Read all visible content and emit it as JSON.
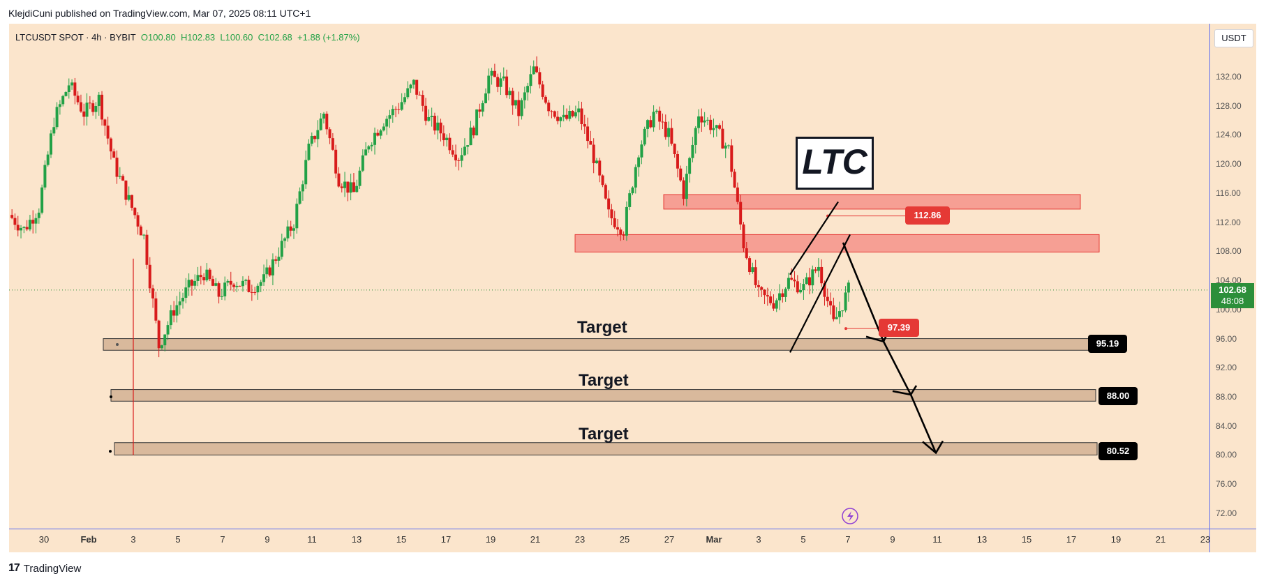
{
  "header": {
    "publisher": "KlejdiCuni published on TradingView.com, Mar 07, 2025 08:11 UTC+1"
  },
  "legend": {
    "symbol": "LTCUSDT SPOT · 4h · BYBIT",
    "open": "O100.80",
    "high": "H102.83",
    "low": "L100.60",
    "close": "C102.68",
    "change": "+1.88 (+1.87%)"
  },
  "currency_button": "USDT",
  "current_price": {
    "value": "102.68",
    "countdown": "48:08"
  },
  "annotations": {
    "title_box": "LTC",
    "targets": [
      "Target",
      "Target",
      "Target"
    ],
    "price_tags": {
      "upper": "112.86",
      "lower": "97.39",
      "target1": "95.19",
      "target2": "88.00",
      "target3": "80.52"
    }
  },
  "footer": {
    "brand": "TradingView"
  },
  "colors": {
    "up": "#22a146",
    "down": "#d81b1b",
    "zone_red": "#f5938a",
    "zone_tan": "#d2b293",
    "tag_red": "#e53935",
    "tag_black": "#000000",
    "bg": "#fbe5cc"
  },
  "chart_data": {
    "type": "candlestick",
    "title": "LTCUSDT SPOT · 4h · BYBIT",
    "ylim": [
      70,
      136
    ],
    "y_ticks": [
      "132.00",
      "128.00",
      "124.00",
      "120.00",
      "116.00",
      "112.00",
      "108.00",
      "104.00",
      "100.00",
      "96.00",
      "92.00",
      "88.00",
      "84.00",
      "80.00",
      "76.00",
      "72.00"
    ],
    "x_ticks": [
      "30",
      "Feb",
      "3",
      "5",
      "7",
      "9",
      "11",
      "13",
      "15",
      "17",
      "19",
      "21",
      "23",
      "25",
      "27",
      "Mar",
      "3",
      "5",
      "7",
      "9",
      "11",
      "13",
      "15",
      "17",
      "19",
      "21",
      "23"
    ],
    "price_series_approx": [
      [
        0,
        113
      ],
      [
        1,
        111
      ],
      [
        2,
        114
      ],
      [
        3,
        126
      ],
      [
        4,
        131
      ],
      [
        5,
        127
      ],
      [
        6,
        129
      ],
      [
        7,
        120
      ],
      [
        8,
        115
      ],
      [
        9,
        110
      ],
      [
        10,
        95
      ],
      [
        11,
        100
      ],
      [
        12,
        103
      ],
      [
        13,
        105
      ],
      [
        14,
        102
      ],
      [
        15,
        104
      ],
      [
        16,
        103
      ],
      [
        17,
        104
      ],
      [
        18,
        108
      ],
      [
        19,
        112
      ],
      [
        20,
        122
      ],
      [
        21,
        127
      ],
      [
        22,
        118
      ],
      [
        23,
        116
      ],
      [
        24,
        123
      ],
      [
        25,
        126
      ],
      [
        26,
        128
      ],
      [
        27,
        131
      ],
      [
        28,
        126
      ],
      [
        29,
        124
      ],
      [
        30,
        121
      ],
      [
        31,
        125
      ],
      [
        32,
        132
      ],
      [
        33,
        131
      ],
      [
        34,
        127
      ],
      [
        35,
        133
      ],
      [
        36,
        128
      ],
      [
        37,
        126
      ],
      [
        38,
        127
      ],
      [
        39,
        121
      ],
      [
        40,
        113
      ],
      [
        41,
        111
      ],
      [
        42,
        122
      ],
      [
        43,
        127
      ],
      [
        44,
        124
      ],
      [
        45,
        116
      ],
      [
        46,
        127
      ],
      [
        47,
        125
      ],
      [
        48,
        122
      ],
      [
        49,
        109
      ],
      [
        50,
        102
      ],
      [
        51,
        101
      ],
      [
        52,
        104
      ],
      [
        53,
        103
      ],
      [
        54,
        106
      ],
      [
        55,
        98
      ],
      [
        56,
        102.68
      ]
    ],
    "zones": [
      {
        "type": "resistance",
        "low": 113.8,
        "high": 115.8
      },
      {
        "type": "resistance",
        "low": 107.9,
        "high": 110.3
      },
      {
        "type": "target",
        "low": 94.4,
        "high": 96.0,
        "label": "Target",
        "value": 95.19
      },
      {
        "type": "target",
        "low": 87.4,
        "high": 89.0,
        "label": "Target",
        "value": 88.0
      },
      {
        "type": "target",
        "low": 80.0,
        "high": 81.7,
        "label": "Target",
        "value": 80.52
      }
    ],
    "marked_levels": [
      112.86,
      97.39
    ],
    "current_price": 102.68
  }
}
